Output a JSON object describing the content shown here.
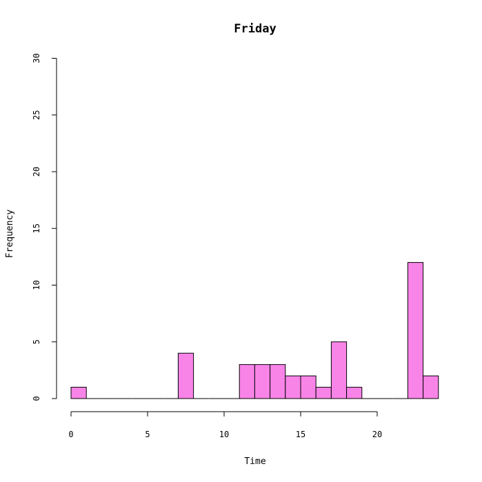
{
  "chart_data": {
    "type": "bar",
    "subtype": "histogram",
    "title": "Friday",
    "xlabel": "Time",
    "ylabel": "Frequency",
    "bin_width": 1,
    "bins": [
      {
        "x0": 0,
        "x1": 1,
        "count": 1
      },
      {
        "x0": 1,
        "x1": 2,
        "count": 0
      },
      {
        "x0": 2,
        "x1": 3,
        "count": 0
      },
      {
        "x0": 3,
        "x1": 4,
        "count": 0
      },
      {
        "x0": 4,
        "x1": 5,
        "count": 0
      },
      {
        "x0": 5,
        "x1": 6,
        "count": 0
      },
      {
        "x0": 6,
        "x1": 7,
        "count": 0
      },
      {
        "x0": 7,
        "x1": 8,
        "count": 4
      },
      {
        "x0": 8,
        "x1": 9,
        "count": 0
      },
      {
        "x0": 9,
        "x1": 10,
        "count": 0
      },
      {
        "x0": 10,
        "x1": 11,
        "count": 0
      },
      {
        "x0": 11,
        "x1": 12,
        "count": 3
      },
      {
        "x0": 12,
        "x1": 13,
        "count": 3
      },
      {
        "x0": 13,
        "x1": 14,
        "count": 3
      },
      {
        "x0": 14,
        "x1": 15,
        "count": 2
      },
      {
        "x0": 15,
        "x1": 16,
        "count": 2
      },
      {
        "x0": 16,
        "x1": 17,
        "count": 1
      },
      {
        "x0": 17,
        "x1": 18,
        "count": 5
      },
      {
        "x0": 18,
        "x1": 19,
        "count": 1
      },
      {
        "x0": 19,
        "x1": 20,
        "count": 0
      },
      {
        "x0": 20,
        "x1": 21,
        "count": 0
      },
      {
        "x0": 21,
        "x1": 22,
        "count": 0
      },
      {
        "x0": 22,
        "x1": 23,
        "count": 12
      },
      {
        "x0": 23,
        "x1": 24,
        "count": 2
      }
    ],
    "xlim": [
      0,
      24
    ],
    "ylim": [
      0,
      30
    ],
    "x_ticks": [
      0,
      5,
      10,
      15,
      20
    ],
    "y_ticks": [
      0,
      5,
      10,
      15,
      20,
      25,
      30
    ],
    "bar_color": "#f984e8",
    "bar_border_color": "#000000",
    "grid": false,
    "legend": "none"
  }
}
